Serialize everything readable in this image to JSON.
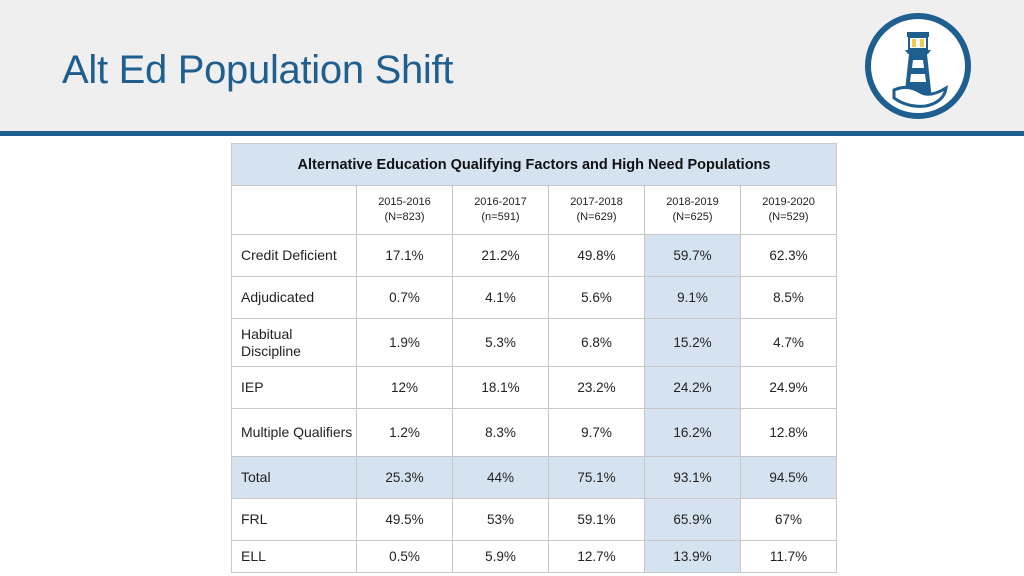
{
  "slide": {
    "title": "Alt Ed Population Shift"
  },
  "table": {
    "caption": "Alternative Education Qualifying Factors and High Need Populations",
    "columns": [
      {
        "year": "2015-2016",
        "n": "(N=823)"
      },
      {
        "year": "2016-2017",
        "n": "(n=591)"
      },
      {
        "year": "2017-2018",
        "n": "(N=629)"
      },
      {
        "year": "2018-2019",
        "n": "(N=625)"
      },
      {
        "year": "2019-2020",
        "n": "(N=529)"
      }
    ],
    "rows": [
      {
        "label": "Credit Deficient",
        "values": [
          "17.1%",
          "21.2%",
          "49.8%",
          "59.7%",
          "62.3%"
        ]
      },
      {
        "label": "Adjudicated",
        "values": [
          "0.7%",
          "4.1%",
          "5.6%",
          "9.1%",
          "8.5%"
        ]
      },
      {
        "label": "Habitual Discipline",
        "values": [
          "1.9%",
          "5.3%",
          "6.8%",
          "15.2%",
          "4.7%"
        ]
      },
      {
        "label": "IEP",
        "values": [
          "12%",
          "18.1%",
          "23.2%",
          "24.2%",
          "24.9%"
        ]
      },
      {
        "label": "Multiple Qualifiers",
        "values": [
          "1.2%",
          "8.3%",
          "9.7%",
          "16.2%",
          "12.8%"
        ]
      },
      {
        "label": "Total",
        "values": [
          "25.3%",
          "44%",
          "75.1%",
          "93.1%",
          "94.5%"
        ]
      },
      {
        "label": "FRL",
        "values": [
          "49.5%",
          "53%",
          "59.1%",
          "65.9%",
          "67%"
        ]
      },
      {
        "label": "ELL",
        "values": [
          "0.5%",
          "5.9%",
          "12.7%",
          "13.9%",
          "11.7%"
        ]
      }
    ]
  },
  "colors": {
    "accent": "#1f5f8f",
    "highlight": "#d5e3f1",
    "header_bg": "#efefef"
  },
  "icons": {
    "logo": "lighthouse-logo-icon"
  }
}
